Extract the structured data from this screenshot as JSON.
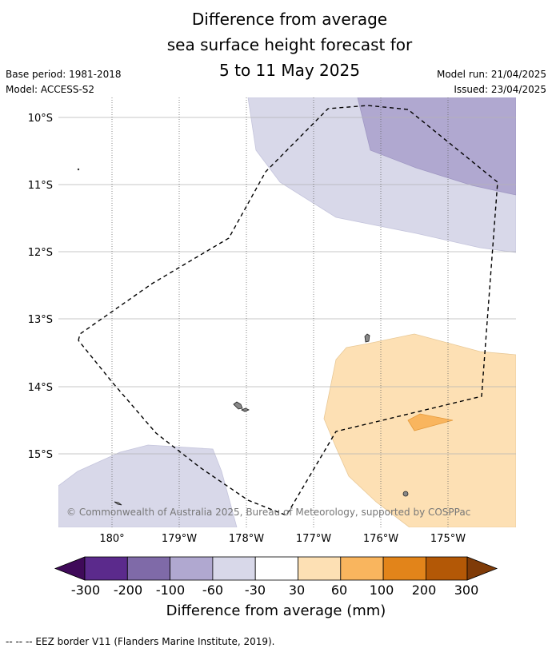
{
  "title": {
    "line1": "Difference from average",
    "line2": "sea surface height forecast for",
    "line3": "5 to 11 May 2025"
  },
  "meta": {
    "base_period": "Base period: 1981-2018",
    "model": "Model: ACCESS-S2",
    "model_run": "Model run: 21/04/2025",
    "issued": "Issued: 23/04/2025"
  },
  "map": {
    "lat_labels": [
      "10°S",
      "11°S",
      "12°S",
      "13°S",
      "14°S",
      "15°S"
    ],
    "lon_labels": [
      "180°",
      "179°W",
      "178°W",
      "177°W",
      "176°W",
      "175°W"
    ],
    "credit": "© Commonwealth of Australia 2025, Bureau of Meteorology, supported by COSPPac"
  },
  "colorbar": {
    "labels": [
      "-300",
      "-200",
      "-100",
      "-60",
      "-30",
      "30",
      "60",
      "100",
      "200",
      "300"
    ],
    "colors": [
      "#3f0a59",
      "#5b2a8c",
      "#7f6aa8",
      "#b0a8d0",
      "#d8d8e9",
      "#ffffff",
      "#fde0b4",
      "#f9b55e",
      "#e2841a",
      "#b35806",
      "#7f3b08"
    ],
    "title": "Difference from average (mm)"
  },
  "footer": "-- -- -- EEZ border V11 (Flanders Marine Institute, 2019)."
}
